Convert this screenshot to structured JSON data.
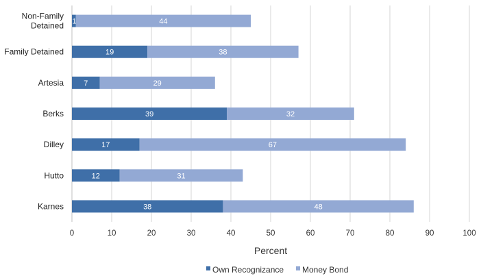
{
  "chart_data": {
    "type": "bar",
    "orientation": "horizontal",
    "stacked": true,
    "categories": [
      [
        "Non-Family",
        "Detained"
      ],
      [
        "Family Detained"
      ],
      [
        "Artesia"
      ],
      [
        "Berks"
      ],
      [
        "Dilley"
      ],
      [
        "Hutto"
      ],
      [
        "Karnes"
      ]
    ],
    "series": [
      {
        "name": "Own Recognizance",
        "color": "#3f6fa8",
        "values": [
          1,
          19,
          7,
          39,
          17,
          12,
          38
        ]
      },
      {
        "name": "Money Bond",
        "color": "#93a9d4",
        "values": [
          44,
          38,
          29,
          32,
          67,
          31,
          48
        ]
      }
    ],
    "xlabel": "Percent",
    "xlim": [
      0,
      100
    ],
    "xticks": [
      0,
      10,
      20,
      30,
      40,
      50,
      60,
      70,
      80,
      90,
      100
    ],
    "grid": true,
    "legend_position": "bottom"
  }
}
